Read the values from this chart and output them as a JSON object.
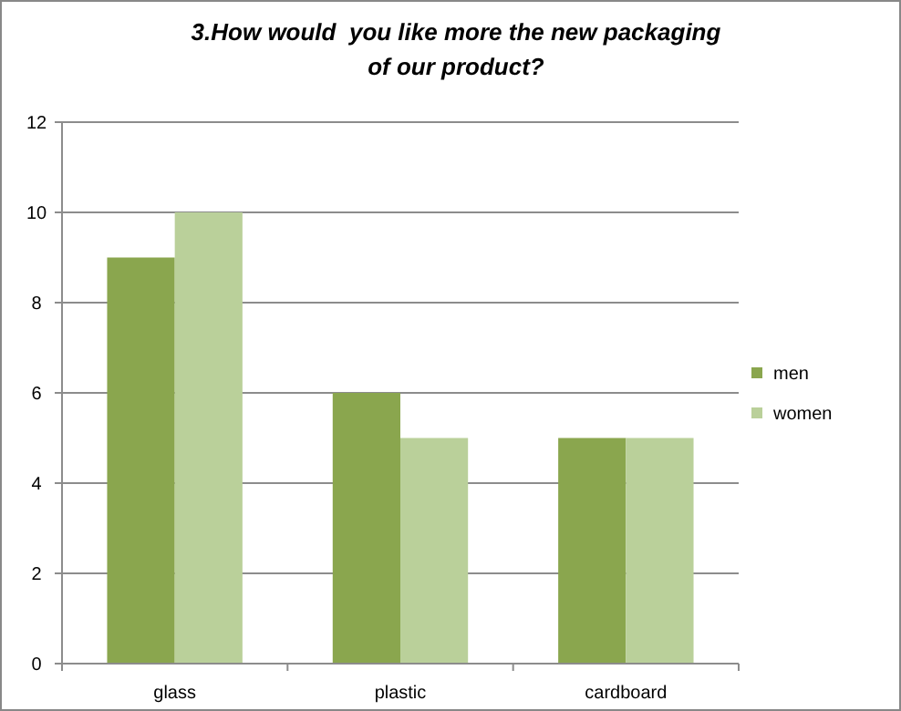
{
  "chart_data": {
    "type": "bar",
    "title": "3.How would  you like more the new packaging of our product?",
    "categories": [
      "glass",
      "plastic",
      "cardboard"
    ],
    "series": [
      {
        "name": "men",
        "color": "#8aa64e",
        "values": [
          9,
          6,
          5
        ]
      },
      {
        "name": "women",
        "color": "#bad09a",
        "values": [
          10,
          5,
          5
        ]
      }
    ],
    "ylim": [
      0,
      12
    ],
    "yticks": [
      0,
      2,
      4,
      6,
      8,
      10,
      12
    ],
    "grid": "y",
    "legend": "right"
  }
}
